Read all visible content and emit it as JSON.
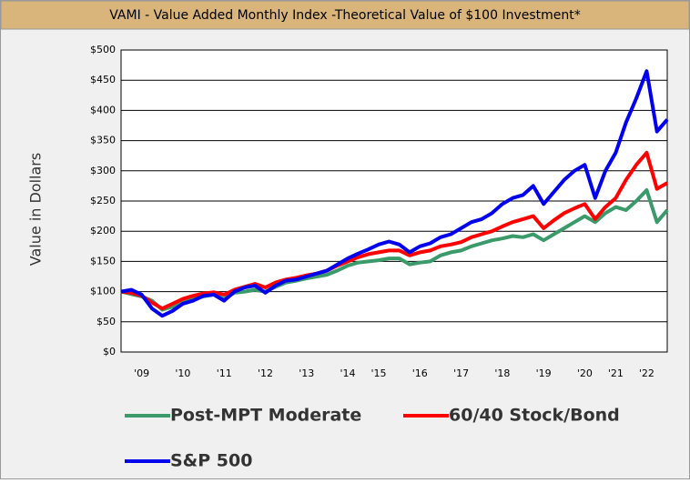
{
  "chart_data": {
    "type": "line",
    "title": "VAMI - Value Added Monthly Index -Theoretical Value of $100 Investment*",
    "y_label": "Value in Dollars",
    "categories": [
      null,
      null,
      "'09",
      null,
      null,
      null,
      "'10",
      null,
      null,
      null,
      "'11",
      null,
      null,
      null,
      "'12",
      null,
      null,
      null,
      "'13",
      null,
      null,
      null,
      "'14",
      null,
      null,
      "'15",
      null,
      null,
      null,
      "'16",
      null,
      null,
      null,
      "'17",
      null,
      null,
      null,
      "'18",
      null,
      null,
      null,
      "'19",
      null,
      null,
      null,
      "'20",
      null,
      null,
      "'21",
      null,
      null,
      "'22",
      null,
      null
    ],
    "series": [
      {
        "name": "Post-MPT Moderate",
        "color": "#3a9a6a",
        "values": [
          100,
          96,
          92,
          85,
          70,
          75,
          85,
          88,
          92,
          95,
          88,
          98,
          100,
          103,
          100,
          108,
          115,
          118,
          122,
          125,
          128,
          135,
          143,
          148,
          150,
          152,
          155,
          155,
          145,
          148,
          150,
          160,
          165,
          168,
          175,
          180,
          185,
          188,
          192,
          190,
          195,
          185,
          195,
          205,
          215,
          225,
          215,
          230,
          240,
          235,
          250,
          268,
          215,
          235
        ]
      },
      {
        "name": "60/40 Stock/Bond",
        "color": "#ff0000",
        "values": [
          100,
          98,
          93,
          82,
          72,
          80,
          88,
          93,
          97,
          99,
          95,
          103,
          108,
          113,
          107,
          115,
          120,
          123,
          127,
          130,
          135,
          143,
          150,
          157,
          162,
          165,
          168,
          168,
          160,
          165,
          168,
          175,
          178,
          182,
          190,
          195,
          200,
          208,
          215,
          220,
          225,
          205,
          218,
          230,
          238,
          245,
          220,
          240,
          255,
          285,
          310,
          330,
          270,
          280
        ]
      },
      {
        "name": "S&P 500",
        "color": "#0000ee",
        "values": [
          100,
          103,
          95,
          72,
          60,
          68,
          80,
          85,
          93,
          95,
          85,
          100,
          107,
          110,
          98,
          110,
          118,
          120,
          125,
          130,
          135,
          145,
          155,
          163,
          170,
          178,
          183,
          178,
          165,
          175,
          180,
          190,
          195,
          205,
          215,
          220,
          230,
          245,
          255,
          260,
          275,
          245,
          265,
          285,
          300,
          310,
          255,
          300,
          330,
          380,
          420,
          465,
          365,
          385
        ]
      }
    ],
    "ylim": [
      0,
      500
    ],
    "yticks": [
      {
        "value": 0,
        "label": "$0"
      },
      {
        "value": 50,
        "label": "$50"
      },
      {
        "value": 100,
        "label": "$100"
      },
      {
        "value": 150,
        "label": "$150"
      },
      {
        "value": 200,
        "label": "$200"
      },
      {
        "value": 250,
        "label": "$250"
      },
      {
        "value": 300,
        "label": "$300"
      },
      {
        "value": 350,
        "label": "$350"
      },
      {
        "value": 400,
        "label": "$400"
      },
      {
        "value": 450,
        "label": "$450"
      },
      {
        "value": 500,
        "label": "$500"
      }
    ],
    "grid": true
  }
}
